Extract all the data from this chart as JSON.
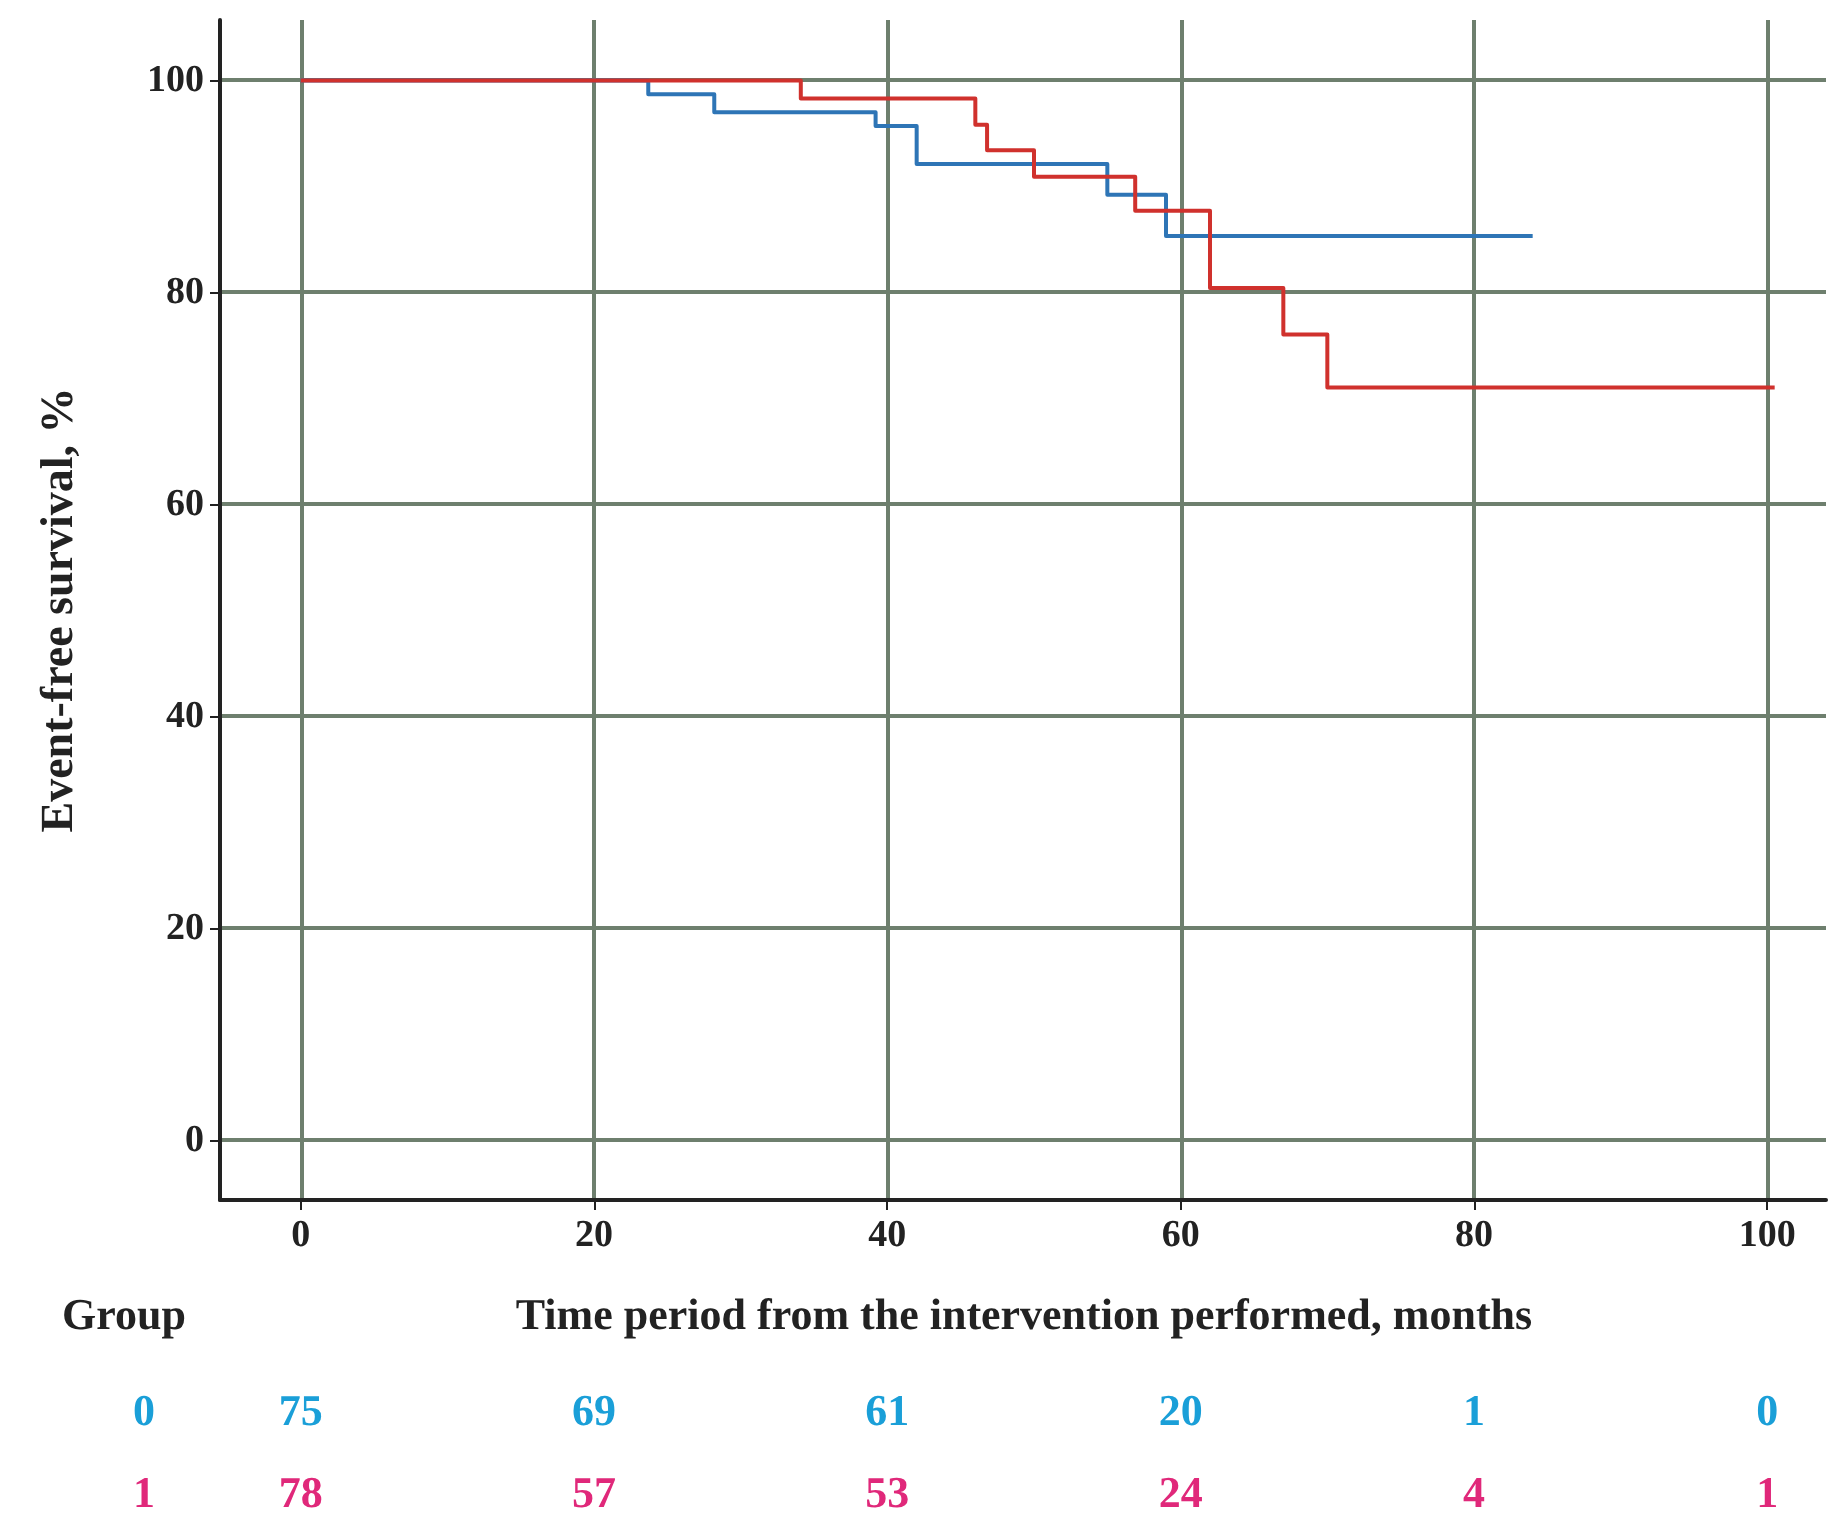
{
  "chart_data": {
    "type": "step",
    "xlabel": "Time period from the intervention performed, months",
    "ylabel": "Event-free survival, %",
    "xlim": [
      -5.5,
      104
    ],
    "xticks": [
      0,
      20,
      40,
      60,
      80,
      100
    ],
    "ylim": [
      -5.7,
      105.7
    ],
    "yticks": [
      0,
      20,
      40,
      60,
      80,
      100
    ],
    "grid": true,
    "marker": "none",
    "line_style": "solid",
    "series": [
      {
        "color": "#2e75b6",
        "x": [
          0,
          23.7,
          28.2,
          39.2,
          42,
          55,
          59,
          84
        ],
        "values": [
          100,
          98.7,
          97,
          95.7,
          92.1,
          89.2,
          85.3,
          85.3
        ]
      },
      {
        "color": "#d0312d",
        "x": [
          0,
          34.1,
          46,
          46.8,
          50,
          56.9,
          62,
          67,
          70,
          100.5
        ],
        "values": [
          100,
          98.3,
          95.8,
          93.4,
          90.9,
          87.7,
          80.4,
          76,
          71,
          71
        ]
      }
    ],
    "annotations": [
      "Group",
      "0",
      "75",
      "69",
      "61",
      "20",
      "1",
      "0",
      "1",
      "78",
      "57",
      "53",
      "24",
      "4",
      "1"
    ]
  }
}
